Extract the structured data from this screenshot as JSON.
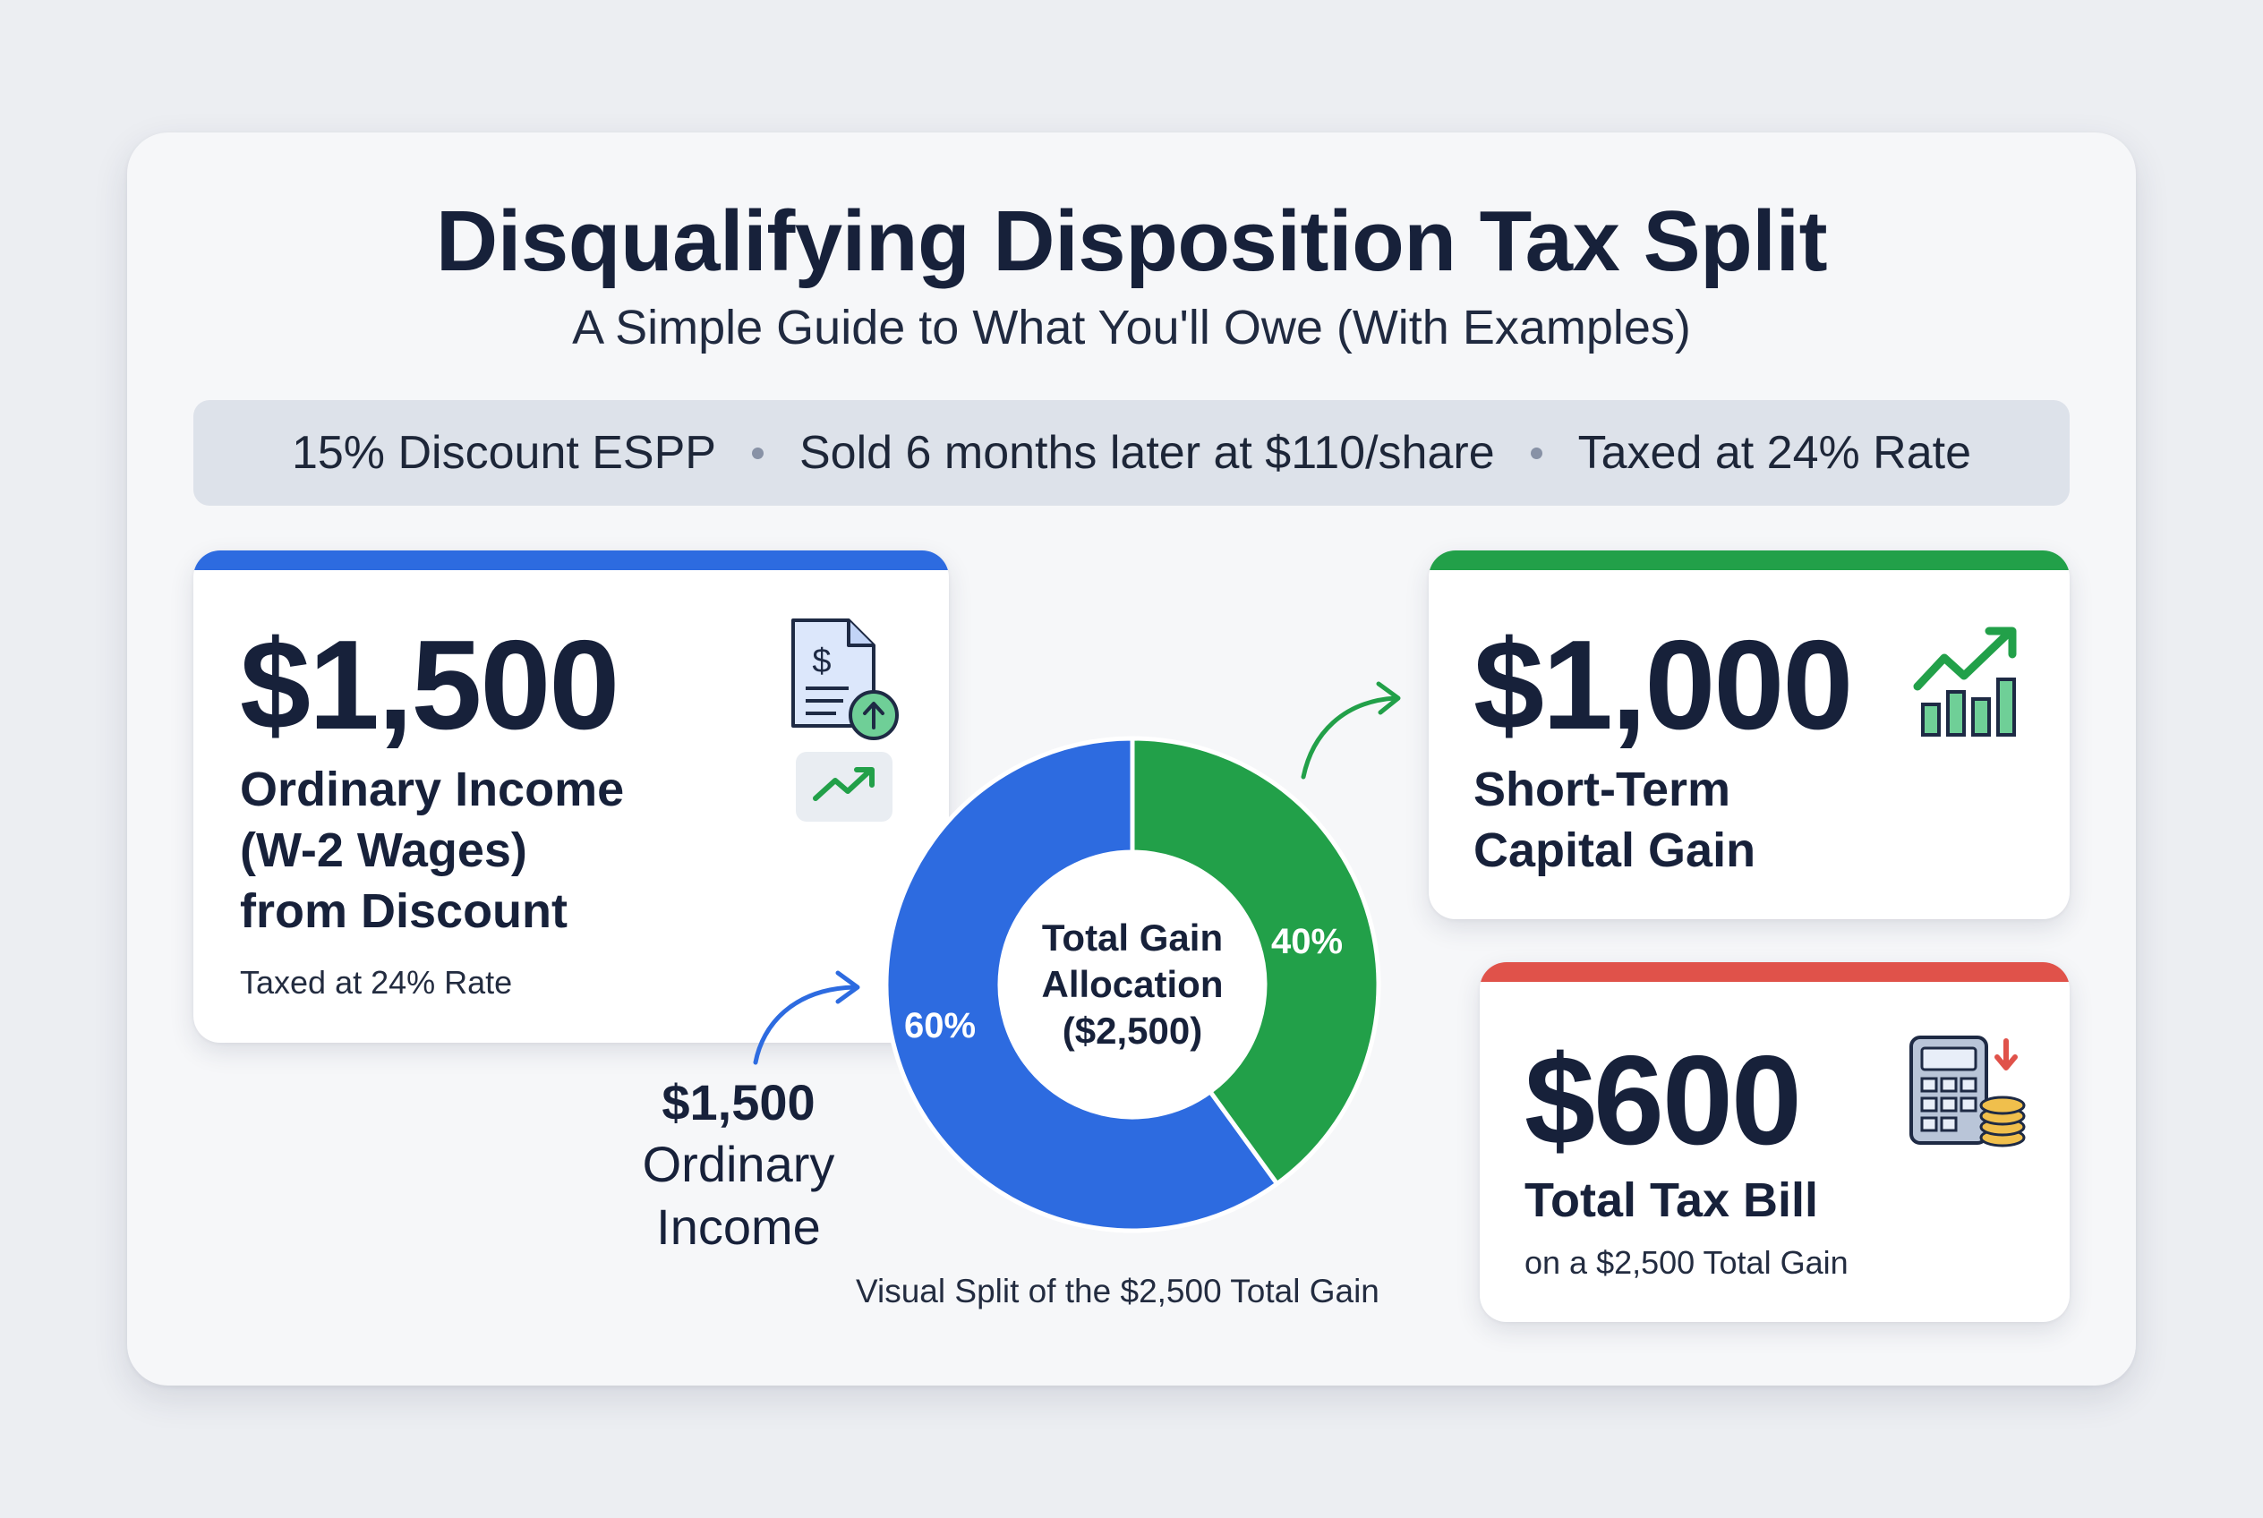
{
  "header": {
    "title": "Disqualifying Disposition Tax Split",
    "subtitle": "A Simple Guide to What You'll Owe (With Examples)"
  },
  "infobar": {
    "items": [
      "15% Discount ESPP",
      "Sold 6 months later at $110/share",
      "Taxed at 24% Rate"
    ]
  },
  "cards": {
    "ordinary": {
      "amount": "$1,500",
      "label_line1": "Ordinary Income",
      "label_line2": "(W-2 Wages)",
      "label_line3": "from Discount",
      "note": "Taxed at 24% Rate",
      "accent": "#2d6be0",
      "icons": [
        "document-dollar-upload-icon",
        "trend-up-icon"
      ]
    },
    "capital": {
      "amount": "$1,000",
      "label_line1": "Short-Term",
      "label_line2": "Capital Gain",
      "accent": "#22a049",
      "icon": "bar-chart-growth-icon"
    },
    "tax": {
      "amount": "$600",
      "label": "Total Tax Bill",
      "note": "on a $2,500 Total Gain",
      "accent": "#e0524a",
      "icon": "calculator-coins-icon"
    }
  },
  "annotation": {
    "amount": "$1,500",
    "line1": "Ordinary",
    "line2": "Income"
  },
  "chart_data": {
    "type": "pie",
    "center_line1": "Total Gain",
    "center_line2": "Allocation",
    "center_line3": "($2,500)",
    "slices": [
      {
        "label": "60%",
        "value": 1500,
        "color": "#2d6be0"
      },
      {
        "label": "40%",
        "value": 1000,
        "color": "#22a049"
      }
    ],
    "caption": "Visual Split of the $2,500 Total Gain"
  }
}
